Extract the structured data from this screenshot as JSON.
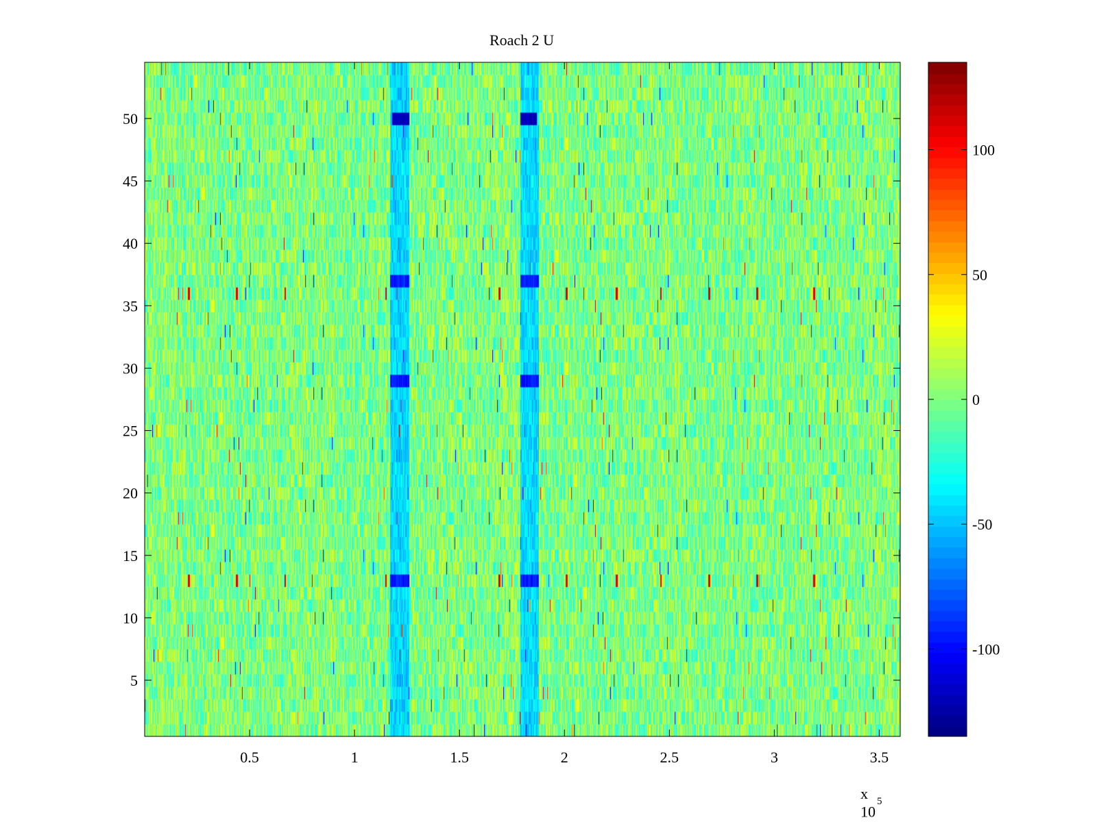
{
  "chart_data": {
    "type": "heatmap",
    "title": "Roach 2 U",
    "xlabel": "",
    "ylabel": "",
    "x_multiplier_label": "x 10",
    "x_multiplier_exponent": "5",
    "xlim": [
      0,
      360000
    ],
    "ylim": [
      0.5,
      54.5
    ],
    "x_ticks": [
      {
        "value": 50000,
        "label": "0.5"
      },
      {
        "value": 100000,
        "label": "1"
      },
      {
        "value": 150000,
        "label": "1.5"
      },
      {
        "value": 200000,
        "label": "2"
      },
      {
        "value": 250000,
        "label": "2.5"
      },
      {
        "value": 300000,
        "label": "3"
      },
      {
        "value": 350000,
        "label": "3.5"
      }
    ],
    "y_ticks": [
      {
        "value": 5,
        "label": "5"
      },
      {
        "value": 10,
        "label": "10"
      },
      {
        "value": 15,
        "label": "15"
      },
      {
        "value": 20,
        "label": "20"
      },
      {
        "value": 25,
        "label": "25"
      },
      {
        "value": 30,
        "label": "30"
      },
      {
        "value": 35,
        "label": "35"
      },
      {
        "value": 40,
        "label": "40"
      },
      {
        "value": 45,
        "label": "45"
      },
      {
        "value": 50,
        "label": "50"
      }
    ],
    "rows": 54,
    "colormap": "jet",
    "colorbar": {
      "range": [
        -135,
        135
      ],
      "ticks": [
        {
          "value": -100,
          "label": "-100"
        },
        {
          "value": -50,
          "label": "-50"
        },
        {
          "value": 0,
          "label": "0"
        },
        {
          "value": 50,
          "label": "50"
        },
        {
          "value": 100,
          "label": "100"
        }
      ]
    },
    "background_level": 0,
    "noise_amplitude": 30,
    "features": [
      {
        "kind": "low-band",
        "x_range": [
          117000,
          126000
        ],
        "level": -55
      },
      {
        "kind": "low-band",
        "x_range": [
          179000,
          188000
        ],
        "level": -55
      },
      {
        "kind": "low-spot",
        "x_range": [
          118000,
          126000
        ],
        "rows": [
          50
        ],
        "level": -120
      },
      {
        "kind": "low-spot",
        "x_range": [
          179000,
          187000
        ],
        "rows": [
          50
        ],
        "level": -120
      },
      {
        "kind": "low-spot",
        "x_range": [
          117000,
          126000
        ],
        "rows": [
          13,
          29,
          37
        ],
        "level": -95
      },
      {
        "kind": "low-spot",
        "x_range": [
          179000,
          188000
        ],
        "rows": [
          13,
          29,
          37
        ],
        "level": -95
      },
      {
        "kind": "high-spike-rows",
        "rows": [
          13,
          36
        ],
        "x_positions": [
          21000,
          44000,
          67000,
          115000,
          169000,
          201000,
          225000,
          246000,
          269000,
          292000,
          319000
        ],
        "level": 110
      }
    ]
  }
}
